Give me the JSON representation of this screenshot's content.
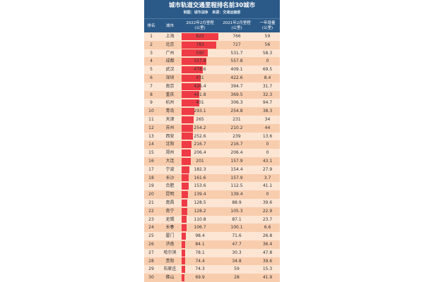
{
  "header": {
    "title": "城市轨道交通里程排名前30城市",
    "credit_label": "制图：",
    "credit_value": "城市战争",
    "source_label": "来源：",
    "source_value": "交通运输部"
  },
  "columns": {
    "rank": "排名",
    "city": "城市",
    "col_2022_line1": "2022年2月里程",
    "col_2022_line2": "(公里)",
    "col_2021_line1": "2021年2月里程",
    "col_2021_line2": "(公里)",
    "col_growth_line1": "一年增量",
    "col_growth_line2": "(公里)"
  },
  "chart_data": {
    "type": "table",
    "title": "城市轨道交通里程排名前30城市",
    "columns": [
      "排名",
      "城市",
      "2022年2月里程(公里)",
      "2021年2月里程(公里)",
      "一年增量(公里)"
    ],
    "bar_column": "2022年2月里程(公里)",
    "bar_max": 825,
    "rows": [
      {
        "rank": "1",
        "city": "上海",
        "km_2022": "825",
        "km_2021": "766",
        "growth": "59",
        "value": 825
      },
      {
        "rank": "2",
        "city": "北京",
        "km_2022": "783",
        "km_2021": "727",
        "growth": "56",
        "value": 783
      },
      {
        "rank": "3",
        "city": "广州",
        "km_2022": "590",
        "km_2021": "531.7",
        "growth": "58.3",
        "value": 590
      },
      {
        "rank": "4",
        "city": "成都",
        "km_2022": "557.8",
        "km_2021": "557.8",
        "growth": "0",
        "value": 557.8
      },
      {
        "rank": "5",
        "city": "武汉",
        "km_2022": "478.6",
        "km_2021": "409.1",
        "growth": "69.5",
        "value": 478.6
      },
      {
        "rank": "6",
        "city": "深圳",
        "km_2022": "431",
        "km_2021": "422.6",
        "growth": "8.4",
        "value": 431
      },
      {
        "rank": "7",
        "city": "南京",
        "km_2022": "426.4",
        "km_2021": "394.7",
        "growth": "31.7",
        "value": 426.4
      },
      {
        "rank": "8",
        "city": "重庆",
        "km_2022": "401.8",
        "km_2021": "369.5",
        "growth": "32.3",
        "value": 401.8
      },
      {
        "rank": "9",
        "city": "杭州",
        "km_2022": "401",
        "km_2021": "306.3",
        "growth": "94.7",
        "value": 401
      },
      {
        "rank": "10",
        "city": "青岛",
        "km_2022": "293.1",
        "km_2021": "254.8",
        "growth": "38.3",
        "value": 293.1
      },
      {
        "rank": "11",
        "city": "天津",
        "km_2022": "265",
        "km_2021": "231",
        "growth": "34",
        "value": 265
      },
      {
        "rank": "12",
        "city": "苏州",
        "km_2022": "254.2",
        "km_2021": "210.2",
        "growth": "44",
        "value": 254.2
      },
      {
        "rank": "13",
        "city": "西安",
        "km_2022": "252.6",
        "km_2021": "239",
        "growth": "13.6",
        "value": 252.6
      },
      {
        "rank": "14",
        "city": "沈阳",
        "km_2022": "216.7",
        "km_2021": "216.7",
        "growth": "0",
        "value": 216.7
      },
      {
        "rank": "15",
        "city": "郑州",
        "km_2022": "206.4",
        "km_2021": "206.4",
        "growth": "0",
        "value": 206.4
      },
      {
        "rank": "16",
        "city": "大连",
        "km_2022": "201",
        "km_2021": "157.9",
        "growth": "43.1",
        "value": 201
      },
      {
        "rank": "17",
        "city": "宁波",
        "km_2022": "182.3",
        "km_2021": "154.4",
        "growth": "27.9",
        "value": 182.3
      },
      {
        "rank": "18",
        "city": "长沙",
        "km_2022": "161.6",
        "km_2021": "157.9",
        "growth": "3.7",
        "value": 161.6
      },
      {
        "rank": "19",
        "city": "合肥",
        "km_2022": "153.6",
        "km_2021": "112.5",
        "growth": "41.1",
        "value": 153.6
      },
      {
        "rank": "20",
        "city": "昆明",
        "km_2022": "139.4",
        "km_2021": "139.4",
        "growth": "0",
        "value": 139.4
      },
      {
        "rank": "21",
        "city": "南昌",
        "km_2022": "128.5",
        "km_2021": "88.9",
        "growth": "39.6",
        "value": 128.5
      },
      {
        "rank": "22",
        "city": "南宁",
        "km_2022": "128.2",
        "km_2021": "105.3",
        "growth": "22.9",
        "value": 128.2
      },
      {
        "rank": "23",
        "city": "无锡",
        "km_2022": "110.8",
        "km_2021": "87.1",
        "growth": "23.7",
        "value": 110.8
      },
      {
        "rank": "24",
        "city": "长春",
        "km_2022": "106.7",
        "km_2021": "100.1",
        "growth": "6.6",
        "value": 106.7
      },
      {
        "rank": "25",
        "city": "厦门",
        "km_2022": "98.4",
        "km_2021": "71.6",
        "growth": "26.8",
        "value": 98.4
      },
      {
        "rank": "26",
        "city": "济南",
        "km_2022": "84.1",
        "km_2021": "47.7",
        "growth": "36.4",
        "value": 84.1
      },
      {
        "rank": "27",
        "city": "哈尔滨",
        "km_2022": "78.1",
        "km_2021": "30.3",
        "growth": "47.8",
        "value": 78.1
      },
      {
        "rank": "28",
        "city": "贵阳",
        "km_2022": "74.4",
        "km_2021": "34.8",
        "growth": "39.6",
        "value": 74.4
      },
      {
        "rank": "29",
        "city": "石家庄",
        "km_2022": "74.3",
        "km_2021": "59",
        "growth": "15.3",
        "value": 74.3
      },
      {
        "rank": "30",
        "city": "佛山",
        "km_2022": "69.9",
        "km_2021": "28",
        "growth": "41.9",
        "value": 69.9
      }
    ]
  },
  "colors": {
    "header_bg": "#2c5a88",
    "bar": "#ef3b45",
    "row_light": "#fde5d3",
    "row_dark": "#f8cdae"
  }
}
